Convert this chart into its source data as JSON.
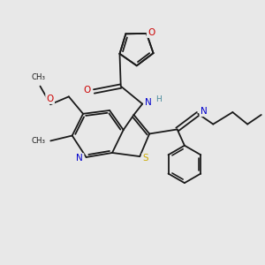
{
  "bg_color": "#e8e8e8",
  "bond_color": "#1a1a1a",
  "atom_colors": {
    "O": "#cc0000",
    "N": "#0000cc",
    "S": "#ccaa00",
    "H": "#448899",
    "C": "#1a1a1a"
  },
  "figsize": [
    3.0,
    3.0
  ],
  "dpi": 100
}
